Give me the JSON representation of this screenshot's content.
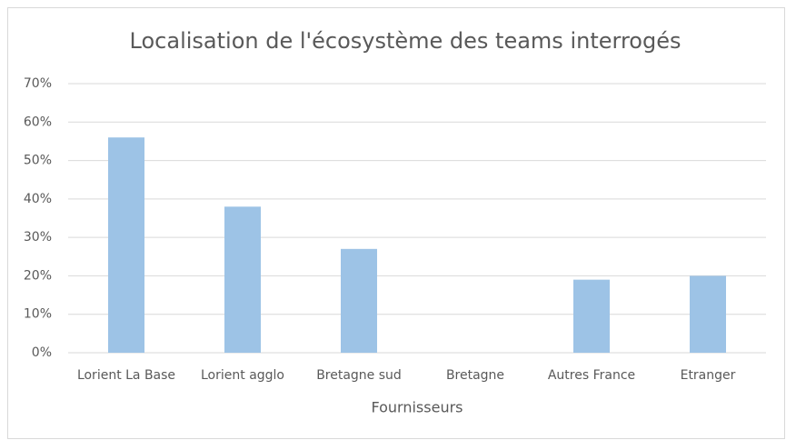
{
  "chart_data": {
    "type": "bar",
    "title": "Localisation de l'écosystème des teams interrogés",
    "x_label": "Fournisseurs",
    "categories": [
      "Lorient La Base",
      "Lorient agglo",
      "Bretagne sud",
      "Bretagne",
      "Autres France",
      "Etranger"
    ],
    "values": [
      56,
      38,
      27,
      0,
      19,
      20
    ],
    "color": "#9dc3e6",
    "ylim": [
      0,
      70
    ],
    "yticks": [
      {
        "value": 0,
        "label": "0%"
      },
      {
        "value": 10,
        "label": "10%"
      },
      {
        "value": 20,
        "label": "20%"
      },
      {
        "value": 30,
        "label": "30%"
      },
      {
        "value": 40,
        "label": "40%"
      },
      {
        "value": 50,
        "label": "50%"
      },
      {
        "value": 60,
        "label": "60%"
      },
      {
        "value": 70,
        "label": "70%"
      }
    ],
    "grid": true
  }
}
